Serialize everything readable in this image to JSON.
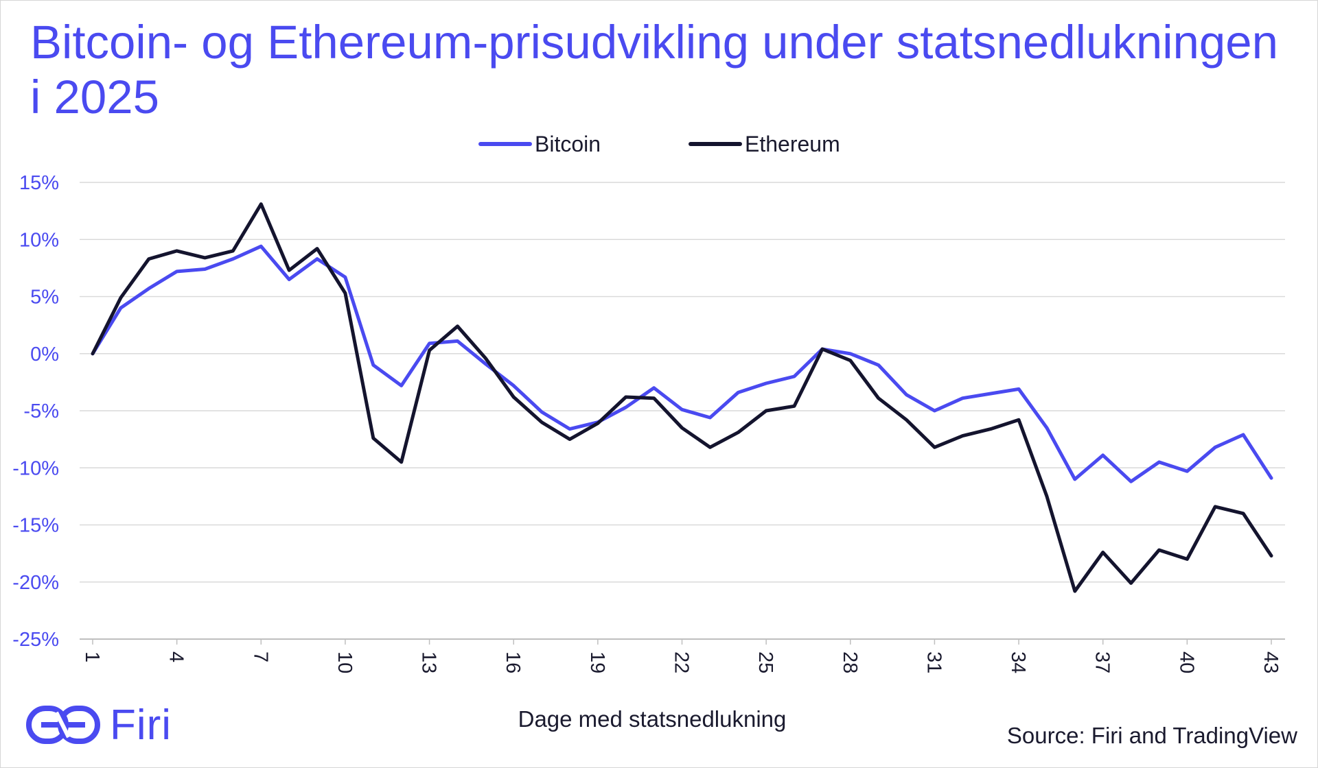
{
  "brand": {
    "name": "Firi",
    "accent": "#4a4af0",
    "dark": "#14142e"
  },
  "chart_data": {
    "type": "line",
    "title": "Bitcoin- og Ethereum-prisudvikling under statsnedlukningen i 2025",
    "xlabel": "Dage med statsnedlukning",
    "ylabel": "",
    "source": "Source: Firi and TradingView",
    "x": [
      1,
      2,
      3,
      4,
      5,
      6,
      7,
      8,
      9,
      10,
      11,
      12,
      13,
      14,
      15,
      16,
      17,
      18,
      19,
      20,
      21,
      22,
      23,
      24,
      25,
      26,
      27,
      28,
      29,
      30,
      31,
      32,
      33,
      34,
      35,
      36,
      37,
      38,
      39,
      40,
      41,
      42,
      43
    ],
    "x_tick_labels": [
      "1",
      "4",
      "7",
      "10",
      "13",
      "16",
      "19",
      "22",
      "25",
      "28",
      "31",
      "34",
      "37",
      "40",
      "43"
    ],
    "x_tick_values": [
      1,
      4,
      7,
      10,
      13,
      16,
      19,
      22,
      25,
      28,
      31,
      34,
      37,
      40,
      43
    ],
    "y_tick_labels": [
      "15%",
      "10%",
      "5%",
      "0%",
      "-5%",
      "-10%",
      "-15%",
      "-20%",
      "-25%"
    ],
    "y_tick_values": [
      15,
      10,
      5,
      0,
      -5,
      -10,
      -15,
      -20,
      -25
    ],
    "ylim": [
      -25,
      15
    ],
    "xlim": [
      1,
      43
    ],
    "grid": true,
    "legend_position": "top-center",
    "series": [
      {
        "name": "Bitcoin",
        "color": "#4a4af0",
        "values": [
          0,
          4,
          5.7,
          7.2,
          7.4,
          8.3,
          9.4,
          6.5,
          8.3,
          6.7,
          -1,
          -2.8,
          0.9,
          1.1,
          -0.9,
          -2.8,
          -5.1,
          -6.6,
          -6,
          -4.7,
          -3,
          -4.9,
          -5.6,
          -3.4,
          -2.6,
          -2,
          0.4,
          0,
          -1,
          -3.6,
          -5,
          -3.9,
          -3.5,
          -3.1,
          -6.5,
          -11,
          -8.9,
          -11.2,
          -9.5,
          -10.3,
          -8.2,
          -7.1,
          -10.9
        ]
      },
      {
        "name": "Ethereum",
        "color": "#14142e",
        "values": [
          0,
          4.9,
          8.3,
          9,
          8.4,
          9,
          13.1,
          7.3,
          9.2,
          5.3,
          -7.4,
          -9.5,
          0.3,
          2.4,
          -0.4,
          -3.8,
          -6,
          -7.5,
          -6.1,
          -3.8,
          -3.9,
          -6.5,
          -8.2,
          -6.9,
          -5,
          -4.6,
          0.4,
          -0.6,
          -3.9,
          -5.8,
          -8.2,
          -7.2,
          -6.6,
          -5.8,
          -12.5,
          -20.8,
          -17.4,
          -20.1,
          -17.2,
          -18,
          -13.4,
          -14,
          -17.7
        ]
      }
    ]
  }
}
